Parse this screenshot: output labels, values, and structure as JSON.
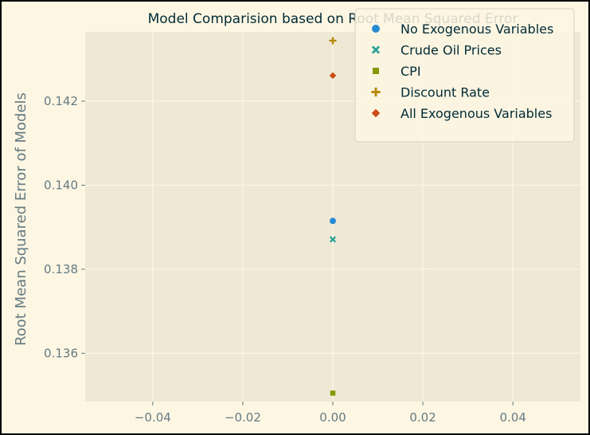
{
  "chart_data": {
    "type": "scatter",
    "title": "Model Comparision based on Root Mean Squared Error",
    "xlabel": "",
    "ylabel": "Root Mean Squared Error of Models",
    "xlim": [
      -0.055,
      0.055
    ],
    "ylim": [
      0.13485,
      0.14365
    ],
    "xticks": [
      -0.04,
      -0.02,
      0.0,
      0.02,
      0.04
    ],
    "xtick_labels": [
      "−0.04",
      "−0.02",
      "0.00",
      "0.02",
      "0.04"
    ],
    "yticks": [
      0.136,
      0.138,
      0.14,
      0.142
    ],
    "ytick_labels": [
      "0.136",
      "0.138",
      "0.140",
      "0.142"
    ],
    "grid": true,
    "legend_position": "top-right",
    "series": [
      {
        "name": "No Exogenous Variables",
        "marker": "circle",
        "color": "#268bd2",
        "x": [
          0.0
        ],
        "y": [
          0.13915
        ]
      },
      {
        "name": "Crude Oil Prices",
        "marker": "x",
        "color": "#2aa198",
        "x": [
          0.0
        ],
        "y": [
          0.13871
        ]
      },
      {
        "name": "CPI",
        "marker": "square",
        "color": "#859900",
        "x": [
          0.0
        ],
        "y": [
          0.13505
        ]
      },
      {
        "name": "Discount Rate",
        "marker": "plus",
        "color": "#b58900",
        "x": [
          0.0
        ],
        "y": [
          0.14344
        ]
      },
      {
        "name": "All Exogenous Variables",
        "marker": "diamond",
        "color": "#cb4b16",
        "x": [
          0.0
        ],
        "y": [
          0.14261
        ]
      }
    ],
    "colors": {
      "figure_bg": "#fdf6e3",
      "axes_bg": "#eee8d5",
      "grid": "#fdf6e3",
      "tick_text": "#657b83",
      "title_text": "#002b36",
      "legend_bg": "#fdf6e3"
    }
  }
}
